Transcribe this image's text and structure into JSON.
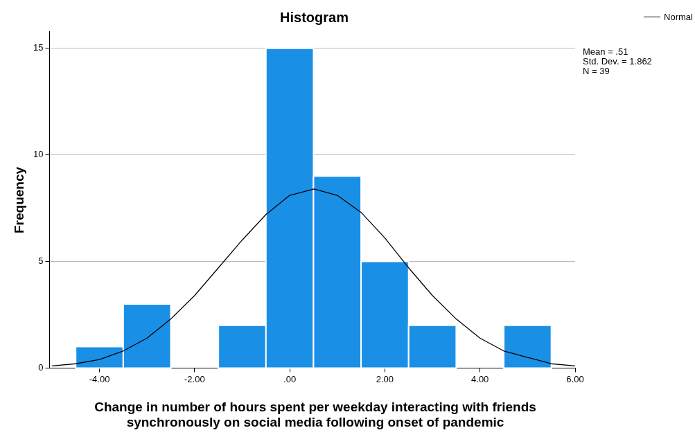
{
  "chart_data": {
    "type": "histogram",
    "title": "Histogram",
    "xlabel": "Change in number of hours spent per weekday interacting with friends synchronously on social media following onset of pandemic",
    "ylabel": "Frequency",
    "bins": [
      -4.5,
      -3.5,
      -2.5,
      -1.5,
      -0.5,
      0.5,
      1.5,
      2.5,
      3.5,
      4.5,
      5.5
    ],
    "series": [
      {
        "color": "#1a8fe6",
        "values": [
          1,
          3,
          0,
          2,
          15,
          9,
          5,
          2,
          0,
          2
        ]
      },
      {
        "type": "line",
        "name": "Normal",
        "color": "#000000",
        "x": [
          -5,
          -4.5,
          -4,
          -3.5,
          -3,
          -2.5,
          -2,
          -1.5,
          -1,
          -0.5,
          0,
          0.51,
          1,
          1.5,
          2,
          2.5,
          3,
          3.5,
          4,
          4.5,
          5,
          5.5,
          6
        ],
        "values": [
          0.1,
          0.2,
          0.4,
          0.8,
          1.4,
          2.3,
          3.4,
          4.7,
          6.0,
          7.2,
          8.1,
          8.4,
          8.1,
          7.3,
          6.1,
          4.7,
          3.4,
          2.3,
          1.4,
          0.8,
          0.5,
          0.2,
          0.1
        ]
      }
    ],
    "xlim": [
      -5.05,
      6
    ],
    "xticks": [
      {
        "value": -4,
        "label": "-4.00"
      },
      {
        "value": -2,
        "label": "-2.00"
      },
      {
        "value": 0,
        "label": ".00"
      },
      {
        "value": 2,
        "label": "2.00"
      },
      {
        "value": 4,
        "label": "4.00"
      },
      {
        "value": 6,
        "label": "6.00"
      }
    ],
    "ylim": [
      0,
      15.8
    ],
    "yticks": [
      0,
      5,
      10,
      15
    ],
    "grid": "y",
    "legend": "top right",
    "marker": "none",
    "line_style": "solid",
    "annotations": [
      "Mean = .51",
      "Std. Dev. = 1.862",
      "N = 39"
    ]
  }
}
